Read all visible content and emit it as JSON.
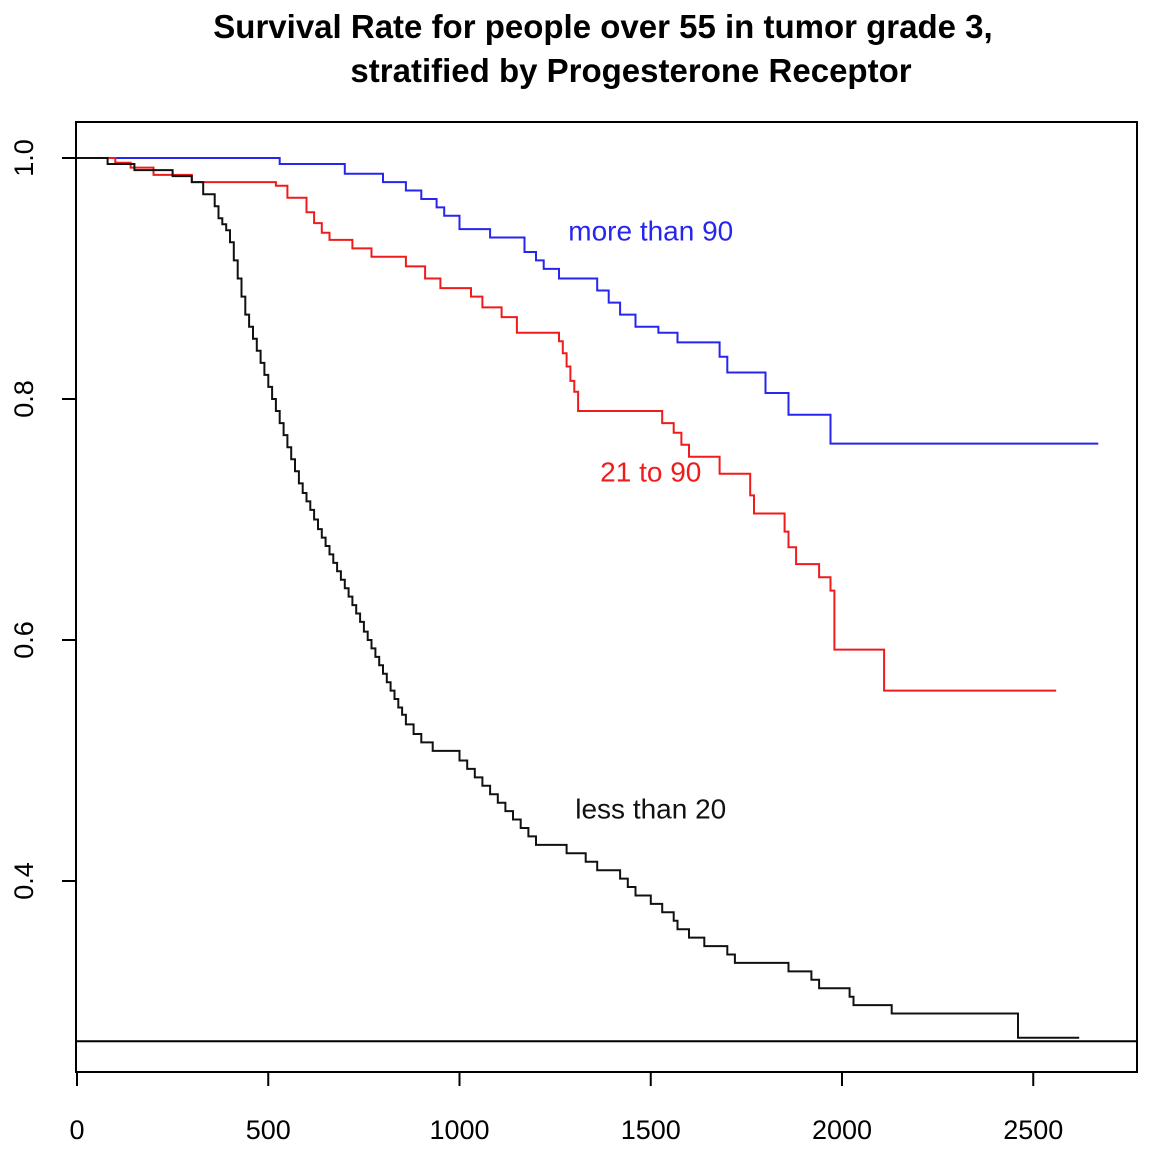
{
  "chart_data": {
    "type": "line",
    "title_lines": [
      "Survival Rate for people over 55 in tumor grade 3,",
      "stratified by Progesterone Receptor"
    ],
    "xlabel": "",
    "ylabel": "",
    "xlim": [
      0,
      2770
    ],
    "ylim": [
      0.245,
      1.03
    ],
    "x_ticks": [
      0,
      500,
      1000,
      1500,
      2000,
      2500
    ],
    "y_ticks": [
      0.4,
      0.6,
      0.8,
      1.0
    ],
    "x_tick_labels": [
      "0",
      "500",
      "1000",
      "1500",
      "2000",
      "2500"
    ],
    "y_tick_labels": [
      "0.4",
      "0.6",
      "0.8",
      "1.0"
    ],
    "grid": false,
    "step": true,
    "hlines": [
      0.267
    ],
    "series": [
      {
        "name": "more than 90",
        "color": "#2626ee",
        "label_anchor": [
          1500,
          0.94
        ],
        "x": [
          0,
          530,
          700,
          800,
          860,
          900,
          940,
          960,
          1000,
          1080,
          1170,
          1200,
          1220,
          1260,
          1360,
          1390,
          1420,
          1460,
          1520,
          1570,
          1680,
          1700,
          1800,
          1860,
          1970,
          2670
        ],
        "y": [
          1.0,
          0.995,
          0.987,
          0.98,
          0.973,
          0.966,
          0.959,
          0.952,
          0.941,
          0.934,
          0.922,
          0.915,
          0.908,
          0.9,
          0.89,
          0.88,
          0.87,
          0.86,
          0.855,
          0.847,
          0.835,
          0.822,
          0.805,
          0.787,
          0.763,
          0.763
        ]
      },
      {
        "name": "21 to 90",
        "color": "#ee1c1c",
        "label_anchor": [
          1500,
          0.74
        ],
        "x": [
          0,
          100,
          140,
          200,
          300,
          520,
          550,
          600,
          620,
          640,
          660,
          720,
          770,
          860,
          910,
          950,
          1030,
          1060,
          1110,
          1150,
          1260,
          1270,
          1280,
          1290,
          1300,
          1310,
          1530,
          1560,
          1580,
          1600,
          1680,
          1760,
          1770,
          1850,
          1860,
          1880,
          1940,
          1970,
          1980,
          2110,
          2560
        ],
        "y": [
          1.0,
          0.996,
          0.992,
          0.986,
          0.98,
          0.977,
          0.967,
          0.955,
          0.946,
          0.938,
          0.932,
          0.925,
          0.918,
          0.91,
          0.9,
          0.892,
          0.885,
          0.876,
          0.868,
          0.855,
          0.848,
          0.838,
          0.827,
          0.815,
          0.806,
          0.79,
          0.78,
          0.772,
          0.762,
          0.752,
          0.738,
          0.72,
          0.705,
          0.69,
          0.677,
          0.663,
          0.652,
          0.641,
          0.592,
          0.558,
          0.558
        ]
      },
      {
        "name": "less than 20",
        "color": "#111111",
        "label_anchor": [
          1500,
          0.46
        ],
        "x": [
          0,
          80,
          150,
          250,
          300,
          330,
          360,
          370,
          380,
          390,
          400,
          410,
          420,
          430,
          440,
          450,
          460,
          470,
          480,
          490,
          500,
          510,
          520,
          530,
          540,
          550,
          560,
          570,
          580,
          590,
          600,
          610,
          620,
          630,
          640,
          650,
          660,
          670,
          680,
          690,
          700,
          710,
          720,
          730,
          740,
          750,
          760,
          770,
          780,
          790,
          800,
          810,
          820,
          830,
          840,
          850,
          860,
          880,
          900,
          930,
          1000,
          1020,
          1040,
          1060,
          1080,
          1100,
          1120,
          1140,
          1160,
          1180,
          1200,
          1280,
          1330,
          1360,
          1420,
          1440,
          1460,
          1500,
          1530,
          1560,
          1570,
          1600,
          1640,
          1700,
          1720,
          1860,
          1920,
          1940,
          2020,
          2030,
          2130,
          2460,
          2620
        ],
        "y": [
          1.0,
          0.995,
          0.99,
          0.985,
          0.98,
          0.97,
          0.96,
          0.95,
          0.945,
          0.94,
          0.93,
          0.915,
          0.9,
          0.885,
          0.87,
          0.86,
          0.85,
          0.84,
          0.83,
          0.82,
          0.81,
          0.8,
          0.79,
          0.78,
          0.77,
          0.76,
          0.75,
          0.74,
          0.73,
          0.722,
          0.715,
          0.708,
          0.7,
          0.692,
          0.685,
          0.678,
          0.671,
          0.664,
          0.657,
          0.65,
          0.643,
          0.636,
          0.629,
          0.622,
          0.615,
          0.607,
          0.6,
          0.593,
          0.586,
          0.579,
          0.572,
          0.565,
          0.558,
          0.551,
          0.544,
          0.538,
          0.53,
          0.522,
          0.515,
          0.508,
          0.5,
          0.493,
          0.486,
          0.479,
          0.472,
          0.465,
          0.458,
          0.451,
          0.444,
          0.437,
          0.43,
          0.423,
          0.416,
          0.409,
          0.402,
          0.395,
          0.388,
          0.381,
          0.374,
          0.367,
          0.36,
          0.353,
          0.346,
          0.339,
          0.332,
          0.325,
          0.318,
          0.311,
          0.304,
          0.297,
          0.29,
          0.27,
          0.27
        ]
      }
    ]
  }
}
